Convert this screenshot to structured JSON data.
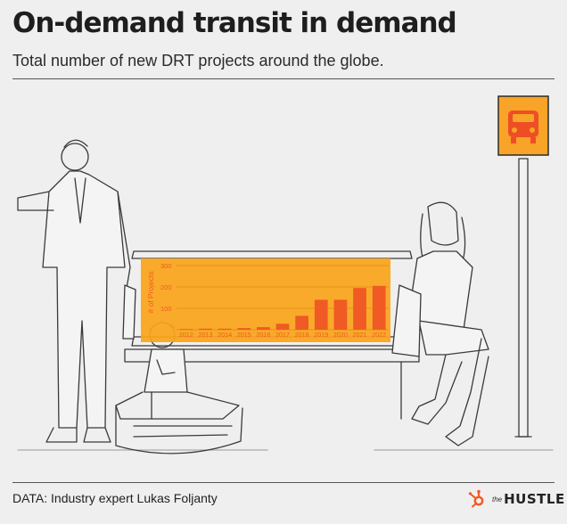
{
  "header": {
    "title": "On-demand transit in demand",
    "subtitle": "Total number of new DRT projects around the globe."
  },
  "footer": {
    "source": "DATA: Industry expert Lukas Foljanty",
    "brand_prefix": "the",
    "brand_name": "HUSTLE"
  },
  "icons": {
    "logo": "hubspot-sprocket-icon",
    "sign": "car-icon"
  },
  "colors": {
    "chart_bg": "#fba51b",
    "bar": "#f05a24",
    "sign_bg": "#f7a428",
    "logo": "#f05a24"
  },
  "chart_data": {
    "type": "bar",
    "title": "",
    "xlabel": "",
    "ylabel": "# of Projects",
    "categories": [
      "2012",
      "2013",
      "2014",
      "2015",
      "2016",
      "2017",
      "2018",
      "2019",
      "2020",
      "2021",
      "2022"
    ],
    "values": [
      3,
      5,
      5,
      8,
      12,
      28,
      65,
      140,
      140,
      195,
      205
    ],
    "ylim": [
      0,
      300
    ],
    "yticks": [
      100,
      200,
      300
    ],
    "grid": true,
    "legend": "none"
  }
}
